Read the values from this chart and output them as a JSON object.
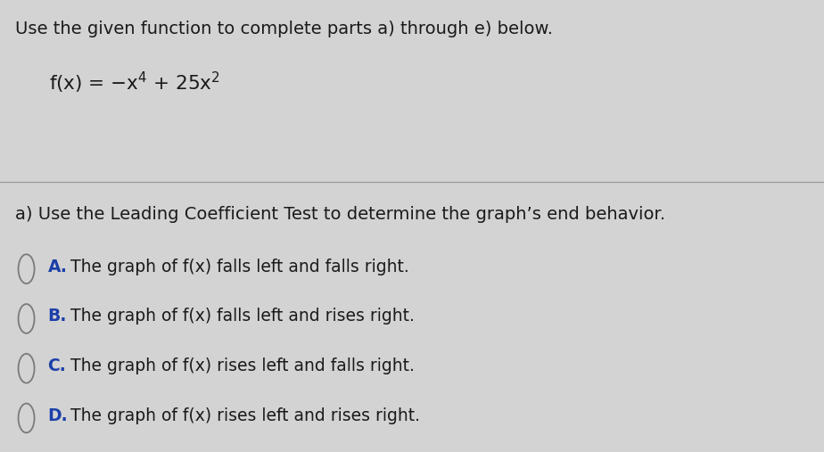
{
  "background_color": "#d3d3d3",
  "header_text": "Use the given function to complete parts a) through e) below.",
  "question_text": "a) Use the Leading Coefficient Test to determine the graph’s end behavior.",
  "options": [
    {
      "label": "A.",
      "text": "  The graph of f(x) falls left and falls right."
    },
    {
      "label": "B.",
      "text": "  The graph of f(x) falls left and rises right."
    },
    {
      "label": "C.",
      "text": "  The graph of f(x) rises left and falls right."
    },
    {
      "label": "D.",
      "text": "  The graph of f(x) rises left and rises right."
    }
  ],
  "circle_color": "#7a7a7a",
  "text_color": "#1a1a1a",
  "label_color": "#1c3fa8",
  "header_fontsize": 14.0,
  "function_fontsize": 15.5,
  "question_fontsize": 14.0,
  "option_fontsize": 13.5,
  "divider_color": "#999999"
}
